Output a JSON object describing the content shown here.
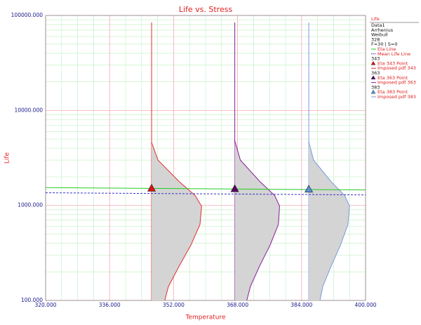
{
  "chart_data": {
    "type": "life_stress",
    "title": "Life vs. Stress",
    "xlabel": "Temperature",
    "ylabel": "Life",
    "xlim": [
      320,
      400
    ],
    "ylim": [
      100,
      100000
    ],
    "yscale": "log",
    "grid": true,
    "xticks": [
      {
        "value": 320,
        "label": "320.000"
      },
      {
        "value": 336,
        "label": "336.000"
      },
      {
        "value": 352,
        "label": "352.000"
      },
      {
        "value": 368,
        "label": "368.000"
      },
      {
        "value": 384,
        "label": "384.000"
      },
      {
        "value": 400,
        "label": "400.000"
      }
    ],
    "yticks": [
      {
        "value": 100,
        "label": "100.000"
      },
      {
        "value": 1000,
        "label": "1000.000"
      },
      {
        "value": 10000,
        "label": "10000.000"
      },
      {
        "value": 100000,
        "label": "100000.000"
      }
    ],
    "legend": {
      "position": "right",
      "title": "Life",
      "info": [
        "Data1",
        "Arrhenius",
        "Weibull",
        "328",
        "F=30 | S=0"
      ]
    },
    "lines": [
      {
        "name": "Eta Line",
        "color": "#22cc22",
        "dashed": false,
        "x": [
          320,
          400
        ],
        "values": [
          1540,
          1455
        ]
      },
      {
        "name": "Mean Life Line",
        "color": "#3333cc",
        "dashed": true,
        "x": [
          320,
          400
        ],
        "values": [
          1360,
          1290
        ]
      }
    ],
    "stress_levels": [
      {
        "name": "343",
        "point": {
          "name": "Eta 343 Point",
          "color": "#e01010",
          "x": 346.5,
          "value": 1510
        },
        "pdf": {
          "name": "Imposed pdf 343",
          "color": "#e03030",
          "values": [
            4600,
            3000,
            1780,
            1270,
            980,
            630,
            380,
            230,
            140,
            100
          ],
          "x": [
            346.5,
            348.1,
            353.4,
            357.4,
            359.0,
            358.6,
            356.3,
            353.4,
            350.7,
            349.8
          ]
        }
      },
      {
        "name": "363",
        "point": {
          "name": "Eta 363 Point",
          "color": "#5a0060",
          "x": 367.3,
          "value": 1490
        },
        "pdf": {
          "name": "Imposed pdf 363",
          "color": "#8a1a9a",
          "values": [
            4800,
            3000,
            1780,
            1270,
            980,
            630,
            380,
            230,
            140,
            100
          ],
          "x": [
            367.3,
            368.7,
            373.6,
            377.3,
            378.5,
            378.2,
            376.1,
            373.5,
            371.2,
            370.3
          ]
        }
      },
      {
        "name": "383",
        "point": {
          "name": "Eta 383 Point",
          "color": "#5b8fd6",
          "x": 385.8,
          "value": 1475
        },
        "pdf": {
          "name": "Imposed pdf 383",
          "color": "#7a9ae0",
          "values": [
            4700,
            3000,
            1780,
            1270,
            980,
            630,
            380,
            230,
            140,
            100
          ],
          "x": [
            385.8,
            387.0,
            391.4,
            394.8,
            396.0,
            395.6,
            393.7,
            391.4,
            389.3,
            388.6
          ]
        }
      }
    ]
  }
}
